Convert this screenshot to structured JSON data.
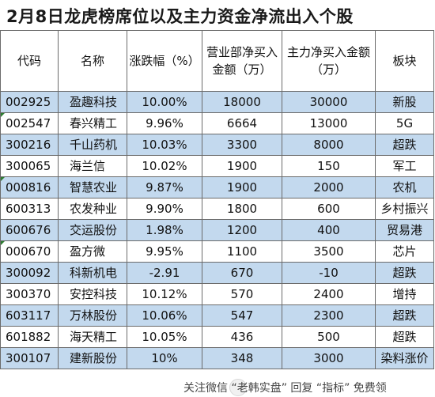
{
  "title": "2月8日龙虎榜席位以及主力资金净流出入个股",
  "columns": [
    "代码",
    "名称",
    "涨跌幅（%）",
    "营业部净买入金额（万）",
    "主力净买入金额（万）",
    "板块"
  ],
  "rows": [
    {
      "code": "002925",
      "name": "盈趣科技",
      "change": "10.00%",
      "dept": "18000",
      "main": "30000",
      "sector": "新股",
      "corner": false
    },
    {
      "code": "002547",
      "name": "春兴精工",
      "change": "9.96%",
      "dept": "6664",
      "main": "13000",
      "sector": "5G",
      "corner": true
    },
    {
      "code": "300216",
      "name": "千山药机",
      "change": "10.03%",
      "dept": "3300",
      "main": "8000",
      "sector": "超跌",
      "corner": false
    },
    {
      "code": "300065",
      "name": "海兰信",
      "change": "10.02%",
      "dept": "1900",
      "main": "150",
      "sector": "军工",
      "corner": false
    },
    {
      "code": "000816",
      "name": "智慧农业",
      "change": "9.87%",
      "dept": "1900",
      "main": "2000",
      "sector": "农机",
      "corner": true
    },
    {
      "code": "600313",
      "name": "农发种业",
      "change": "9.90%",
      "dept": "1800",
      "main": "600",
      "sector": "乡村振兴",
      "corner": false
    },
    {
      "code": "600676",
      "name": "交运股份",
      "change": "1.98%",
      "dept": "1200",
      "main": "400",
      "sector": "贸易港",
      "corner": false
    },
    {
      "code": "000670",
      "name": "盈方微",
      "change": "9.95%",
      "dept": "1100",
      "main": "3500",
      "sector": "芯片",
      "corner": true
    },
    {
      "code": "300092",
      "name": "科新机电",
      "change": "-2.91",
      "dept": "670",
      "main": "-10",
      "sector": "超跌",
      "corner": false
    },
    {
      "code": "300370",
      "name": "安控科技",
      "change": "10.12%",
      "dept": "570",
      "main": "2400",
      "sector": "增持",
      "corner": false
    },
    {
      "code": "603117",
      "name": "万林股份",
      "change": "10.06%",
      "dept": "547",
      "main": "2300",
      "sector": "超跌",
      "corner": false
    },
    {
      "code": "601882",
      "name": "海天精工",
      "change": "10.05%",
      "dept": "436",
      "main": "500",
      "sector": "超跌",
      "corner": false
    },
    {
      "code": "300107",
      "name": "建新股份",
      "change": "10%",
      "dept": "348",
      "main": "3000",
      "sector": "染料涨价",
      "corner": false
    }
  ],
  "watermark": "关注微信 “老韩实盘” 回复 “指标” 免费领",
  "colors": {
    "band": "#c3d9ee",
    "border": "#6b6b6b",
    "marker": "#2e7d32"
  }
}
